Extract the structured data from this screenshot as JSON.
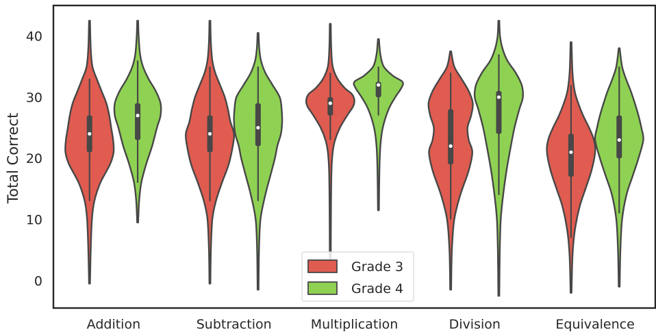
{
  "chart_data": {
    "type": "violin",
    "ylabel": "Total Correct",
    "xlabel": "",
    "ylim": [
      -4.5,
      45
    ],
    "yticks": [
      0,
      10,
      20,
      30,
      40
    ],
    "categories": [
      "Addition",
      "Subtraction",
      "Multiplication",
      "Division",
      "Equivalence"
    ],
    "legend": {
      "placement": "bottom-center"
    },
    "grid": false,
    "series": [
      {
        "name": "Grade 3",
        "color": "#e05c50",
        "stats": [
          {
            "min": -0.5,
            "q1": 21,
            "median": 24,
            "q3": 27,
            "max": 42.5,
            "whisker_low": 13,
            "whisker_high": 33,
            "shape": [
              [
                -0.5,
                0.02
              ],
              [
                5,
                0.05
              ],
              [
                10,
                0.1
              ],
              [
                13,
                0.2
              ],
              [
                16,
                0.45
              ],
              [
                19,
                0.85
              ],
              [
                21,
                1.0
              ],
              [
                23,
                0.98
              ],
              [
                25,
                0.9
              ],
              [
                27,
                0.82
              ],
              [
                29,
                0.7
              ],
              [
                31,
                0.5
              ],
              [
                33,
                0.3
              ],
              [
                35,
                0.12
              ],
              [
                38,
                0.05
              ],
              [
                42.5,
                0.02
              ]
            ]
          },
          {
            "min": -0.5,
            "q1": 21,
            "median": 24,
            "q3": 27,
            "max": 42.5,
            "whisker_low": 13,
            "whisker_high": 35,
            "shape": [
              [
                -0.5,
                0.02
              ],
              [
                5,
                0.04
              ],
              [
                10,
                0.1
              ],
              [
                13,
                0.25
              ],
              [
                16,
                0.5
              ],
              [
                19,
                0.78
              ],
              [
                22,
                0.95
              ],
              [
                24,
                1.0
              ],
              [
                26,
                0.85
              ],
              [
                28,
                0.75
              ],
              [
                30,
                0.62
              ],
              [
                32,
                0.42
              ],
              [
                34,
                0.22
              ],
              [
                36,
                0.1
              ],
              [
                39,
                0.04
              ],
              [
                42.5,
                0.02
              ]
            ]
          },
          {
            "min": 3.5,
            "q1": 27,
            "median": 29,
            "q3": 30,
            "max": 42,
            "whisker_low": 23,
            "whisker_high": 34,
            "shape": [
              [
                3.5,
                0.02
              ],
              [
                12,
                0.03
              ],
              [
                18,
                0.05
              ],
              [
                21,
                0.1
              ],
              [
                23,
                0.2
              ],
              [
                25,
                0.4
              ],
              [
                27,
                0.7
              ],
              [
                28.5,
                0.95
              ],
              [
                29.5,
                1.0
              ],
              [
                30.5,
                0.9
              ],
              [
                31.5,
                0.6
              ],
              [
                33,
                0.3
              ],
              [
                35,
                0.1
              ],
              [
                38,
                0.04
              ],
              [
                42,
                0.02
              ]
            ]
          },
          {
            "min": -1.5,
            "q1": 19,
            "median": 22,
            "q3": 28,
            "max": 37.5,
            "whisker_low": 10,
            "whisker_high": 34,
            "shape": [
              [
                -1.5,
                0.02
              ],
              [
                5,
                0.05
              ],
              [
                10,
                0.15
              ],
              [
                14,
                0.4
              ],
              [
                18,
                0.75
              ],
              [
                21,
                0.9
              ],
              [
                23,
                0.75
              ],
              [
                25,
                0.7
              ],
              [
                27,
                0.85
              ],
              [
                29,
                0.92
              ],
              [
                31,
                0.75
              ],
              [
                33,
                0.45
              ],
              [
                35,
                0.15
              ],
              [
                37.5,
                0.02
              ]
            ]
          },
          {
            "min": -2,
            "q1": 17,
            "median": 21,
            "q3": 24,
            "max": 39,
            "whisker_low": 7,
            "whisker_high": 32,
            "shape": [
              [
                -2,
                0.02
              ],
              [
                4,
                0.06
              ],
              [
                8,
                0.15
              ],
              [
                12,
                0.35
              ],
              [
                15,
                0.6
              ],
              [
                18,
                0.85
              ],
              [
                21,
                1.0
              ],
              [
                23,
                0.95
              ],
              [
                25,
                0.75
              ],
              [
                27,
                0.5
              ],
              [
                29,
                0.3
              ],
              [
                31,
                0.15
              ],
              [
                34,
                0.06
              ],
              [
                39,
                0.02
              ]
            ]
          }
        ]
      },
      {
        "name": "Grade 4",
        "color": "#8fd253",
        "stats": [
          {
            "min": 9.5,
            "q1": 23,
            "median": 27,
            "q3": 29,
            "max": 42.5,
            "whisker_low": 16,
            "whisker_high": 36,
            "shape": [
              [
                9.5,
                0.02
              ],
              [
                13,
                0.06
              ],
              [
                16,
                0.15
              ],
              [
                19,
                0.35
              ],
              [
                22,
                0.6
              ],
              [
                25,
                0.8
              ],
              [
                27,
                0.95
              ],
              [
                29,
                0.95
              ],
              [
                31,
                0.75
              ],
              [
                33,
                0.45
              ],
              [
                35,
                0.22
              ],
              [
                37,
                0.1
              ],
              [
                40,
                0.04
              ],
              [
                42.5,
                0.02
              ]
            ]
          },
          {
            "min": -1.5,
            "q1": 22,
            "median": 25,
            "q3": 29,
            "max": 40.5,
            "whisker_low": 13,
            "whisker_high": 35,
            "shape": [
              [
                -1.5,
                0.02
              ],
              [
                5,
                0.04
              ],
              [
                10,
                0.1
              ],
              [
                14,
                0.3
              ],
              [
                17,
                0.5
              ],
              [
                20,
                0.7
              ],
              [
                22,
                0.8
              ],
              [
                24,
                0.95
              ],
              [
                26,
                1.0
              ],
              [
                28,
                0.98
              ],
              [
                30,
                0.9
              ],
              [
                32,
                0.6
              ],
              [
                34,
                0.3
              ],
              [
                36,
                0.12
              ],
              [
                38,
                0.05
              ],
              [
                40.5,
                0.02
              ]
            ]
          },
          {
            "min": 11.5,
            "q1": 30,
            "median": 32,
            "q3": 32.5,
            "max": 39.5,
            "whisker_low": 27,
            "whisker_high": 35,
            "shape": [
              [
                11.5,
                0.02
              ],
              [
                18,
                0.04
              ],
              [
                22,
                0.08
              ],
              [
                25,
                0.18
              ],
              [
                28,
                0.42
              ],
              [
                30,
                0.7
              ],
              [
                31.5,
                0.95
              ],
              [
                32.5,
                1.0
              ],
              [
                33.5,
                0.6
              ],
              [
                35,
                0.22
              ],
              [
                37,
                0.08
              ],
              [
                39.5,
                0.02
              ]
            ]
          },
          {
            "min": -2.5,
            "q1": 24,
            "median": 30,
            "q3": 31,
            "max": 42.5,
            "whisker_low": 14,
            "whisker_high": 37,
            "shape": [
              [
                -2.5,
                0.02
              ],
              [
                5,
                0.04
              ],
              [
                10,
                0.08
              ],
              [
                14,
                0.18
              ],
              [
                18,
                0.32
              ],
              [
                22,
                0.5
              ],
              [
                25,
                0.65
              ],
              [
                28,
                0.85
              ],
              [
                30,
                1.0
              ],
              [
                32,
                0.95
              ],
              [
                34,
                0.7
              ],
              [
                36,
                0.35
              ],
              [
                38,
                0.15
              ],
              [
                40,
                0.05
              ],
              [
                42.5,
                0.02
              ]
            ]
          },
          {
            "min": -1,
            "q1": 20,
            "median": 23,
            "q3": 27,
            "max": 38,
            "whisker_low": 11,
            "whisker_high": 35,
            "shape": [
              [
                -1,
                0.02
              ],
              [
                5,
                0.05
              ],
              [
                10,
                0.12
              ],
              [
                14,
                0.3
              ],
              [
                17,
                0.55
              ],
              [
                20,
                0.8
              ],
              [
                23,
                1.0
              ],
              [
                25,
                0.92
              ],
              [
                27,
                0.8
              ],
              [
                29,
                0.65
              ],
              [
                31,
                0.48
              ],
              [
                33,
                0.28
              ],
              [
                35,
                0.12
              ],
              [
                38,
                0.02
              ]
            ]
          }
        ]
      }
    ]
  }
}
